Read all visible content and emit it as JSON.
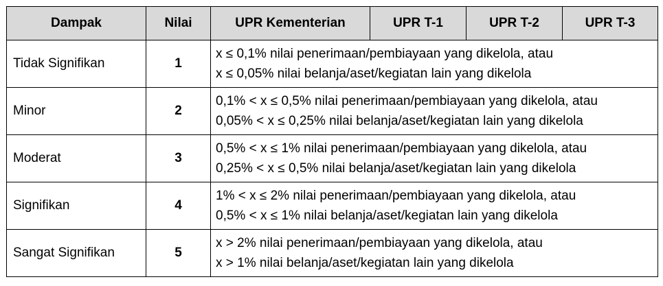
{
  "headers": {
    "dampak": "Dampak",
    "nilai": "Nilai",
    "upr_kementerian": "UPR Kementerian",
    "upr_t1": "UPR T-1",
    "upr_t2": "UPR T-2",
    "upr_t3": "UPR T-3"
  },
  "rows": [
    {
      "dampak": "Tidak Signifikan",
      "nilai": "1",
      "line1": "x ≤ 0,1% nilai penerimaan/pembiayaan yang dikelola, atau",
      "line2": "x ≤ 0,05% nilai belanja/aset/kegiatan lain yang dikelola"
    },
    {
      "dampak": "Minor",
      "nilai": "2",
      "line1": "0,1% < x ≤ 0,5% nilai penerimaan/pembiayaan yang dikelola, atau",
      "line2": "0,05% < x ≤ 0,25% nilai belanja/aset/kegiatan lain yang dikelola"
    },
    {
      "dampak": "Moderat",
      "nilai": "3",
      "line1": "0,5% < x ≤ 1% nilai penerimaan/pembiayaan yang dikelola, atau",
      "line2": "0,25% < x ≤ 0,5% nilai belanja/aset/kegiatan lain yang dikelola"
    },
    {
      "dampak": "Signifikan",
      "nilai": "4",
      "line1": "1% < x ≤ 2% nilai penerimaan/pembiayaan yang dikelola, atau",
      "line2": "0,5% < x ≤ 1% nilai belanja/aset/kegiatan lain yang dikelola"
    },
    {
      "dampak": "Sangat Signifikan",
      "nilai": "5",
      "line1": "x > 2% nilai penerimaan/pembiayaan yang dikelola, atau",
      "line2": "x > 1% nilai belanja/aset/kegiatan lain yang dikelola"
    }
  ]
}
